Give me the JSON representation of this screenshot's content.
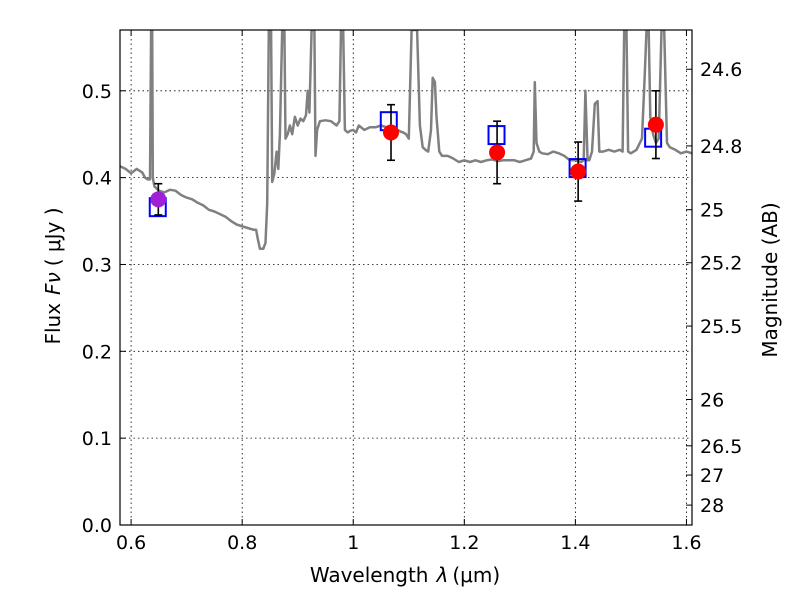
{
  "chart_data": {
    "type": "scatter",
    "xlabel_prefix": "Wavelength",
    "xlabel_symbol": "λ",
    "xlabel_unit": "(μm)",
    "ylabel_prefix": "Flux",
    "ylabel_symbol": "Fν",
    "ylabel_unit": "( μJy )",
    "y2label": "Magnitude (AB)",
    "xlim": [
      0.58,
      1.61
    ],
    "ylim": [
      0.0,
      0.57
    ],
    "grid": true,
    "x_ticks": [
      {
        "v": 0.6,
        "label": "0.6"
      },
      {
        "v": 0.8,
        "label": "0.8"
      },
      {
        "v": 1.0,
        "label": "1"
      },
      {
        "v": 1.2,
        "label": "1.2"
      },
      {
        "v": 1.4,
        "label": "1.4"
      },
      {
        "v": 1.6,
        "label": "1.6"
      }
    ],
    "y_ticks": [
      {
        "v": 0.0,
        "label": "0.0"
      },
      {
        "v": 0.1,
        "label": "0.1"
      },
      {
        "v": 0.2,
        "label": "0.2"
      },
      {
        "v": 0.3,
        "label": "0.3"
      },
      {
        "v": 0.4,
        "label": "0.4"
      },
      {
        "v": 0.5,
        "label": "0.5"
      }
    ],
    "mag_ticks": [
      {
        "mag": 24.6,
        "label": "24.6"
      },
      {
        "mag": 24.8,
        "label": "24.8"
      },
      {
        "mag": 25.0,
        "label": "25"
      },
      {
        "mag": 25.2,
        "label": "25.2"
      },
      {
        "mag": 25.5,
        "label": "25.5"
      },
      {
        "mag": 26.0,
        "label": "26"
      },
      {
        "mag": 26.5,
        "label": "26.5"
      },
      {
        "mag": 27.0,
        "label": "27"
      },
      {
        "mag": 28.0,
        "label": "28"
      }
    ],
    "series": [
      {
        "kind": "model-spectrum",
        "color": "#808080",
        "points": [
          [
            0.58,
            0.413
          ],
          [
            0.59,
            0.41
          ],
          [
            0.6,
            0.405
          ],
          [
            0.61,
            0.41
          ],
          [
            0.62,
            0.406
          ],
          [
            0.625,
            0.4
          ],
          [
            0.63,
            0.398
          ],
          [
            0.634,
            0.398
          ],
          [
            0.636,
            0.57
          ],
          [
            0.638,
            0.57
          ],
          [
            0.639,
            0.4
          ],
          [
            0.642,
            0.39
          ],
          [
            0.65,
            0.385
          ],
          [
            0.66,
            0.383
          ],
          [
            0.67,
            0.386
          ],
          [
            0.68,
            0.385
          ],
          [
            0.69,
            0.38
          ],
          [
            0.7,
            0.377
          ],
          [
            0.71,
            0.375
          ],
          [
            0.72,
            0.371
          ],
          [
            0.73,
            0.368
          ],
          [
            0.74,
            0.363
          ],
          [
            0.75,
            0.361
          ],
          [
            0.76,
            0.358
          ],
          [
            0.77,
            0.355
          ],
          [
            0.78,
            0.35
          ],
          [
            0.79,
            0.346
          ],
          [
            0.8,
            0.344
          ],
          [
            0.81,
            0.342
          ],
          [
            0.82,
            0.34
          ],
          [
            0.825,
            0.34
          ],
          [
            0.828,
            0.33
          ],
          [
            0.832,
            0.318
          ],
          [
            0.838,
            0.318
          ],
          [
            0.842,
            0.325
          ],
          [
            0.845,
            0.37
          ],
          [
            0.848,
            0.57
          ],
          [
            0.852,
            0.57
          ],
          [
            0.854,
            0.395
          ],
          [
            0.858,
            0.405
          ],
          [
            0.862,
            0.43
          ],
          [
            0.865,
            0.41
          ],
          [
            0.868,
            0.45
          ],
          [
            0.872,
            0.57
          ],
          [
            0.876,
            0.57
          ],
          [
            0.878,
            0.445
          ],
          [
            0.882,
            0.45
          ],
          [
            0.886,
            0.46
          ],
          [
            0.89,
            0.45
          ],
          [
            0.895,
            0.47
          ],
          [
            0.9,
            0.46
          ],
          [
            0.905,
            0.468
          ],
          [
            0.91,
            0.465
          ],
          [
            0.915,
            0.472
          ],
          [
            0.918,
            0.5
          ],
          [
            0.921,
            0.475
          ],
          [
            0.925,
            0.57
          ],
          [
            0.93,
            0.57
          ],
          [
            0.932,
            0.425
          ],
          [
            0.935,
            0.455
          ],
          [
            0.94,
            0.465
          ],
          [
            0.95,
            0.466
          ],
          [
            0.96,
            0.465
          ],
          [
            0.97,
            0.46
          ],
          [
            0.975,
            0.465
          ],
          [
            0.978,
            0.57
          ],
          [
            0.982,
            0.57
          ],
          [
            0.985,
            0.455
          ],
          [
            0.99,
            0.452
          ],
          [
            0.995,
            0.454
          ],
          [
            1.0,
            0.455
          ],
          [
            1.005,
            0.452
          ],
          [
            1.01,
            0.46
          ],
          [
            1.02,
            0.455
          ],
          [
            1.03,
            0.458
          ],
          [
            1.04,
            0.458
          ],
          [
            1.05,
            0.46
          ],
          [
            1.06,
            0.458
          ],
          [
            1.07,
            0.455
          ],
          [
            1.08,
            0.455
          ],
          [
            1.085,
            0.453
          ],
          [
            1.09,
            0.452
          ],
          [
            1.095,
            0.45
          ],
          [
            1.1,
            0.445
          ],
          [
            1.105,
            0.57
          ],
          [
            1.115,
            0.57
          ],
          [
            1.12,
            0.46
          ],
          [
            1.125,
            0.435
          ],
          [
            1.13,
            0.432
          ],
          [
            1.135,
            0.43
          ],
          [
            1.14,
            0.455
          ],
          [
            1.143,
            0.515
          ],
          [
            1.147,
            0.51
          ],
          [
            1.15,
            0.47
          ],
          [
            1.155,
            0.43
          ],
          [
            1.16,
            0.425
          ],
          [
            1.17,
            0.425
          ],
          [
            1.18,
            0.422
          ],
          [
            1.19,
            0.418
          ],
          [
            1.2,
            0.42
          ],
          [
            1.21,
            0.418
          ],
          [
            1.22,
            0.42
          ],
          [
            1.23,
            0.418
          ],
          [
            1.24,
            0.42
          ],
          [
            1.25,
            0.421
          ],
          [
            1.26,
            0.419
          ],
          [
            1.27,
            0.42
          ],
          [
            1.28,
            0.42
          ],
          [
            1.29,
            0.42
          ],
          [
            1.3,
            0.418
          ],
          [
            1.31,
            0.42
          ],
          [
            1.32,
            0.422
          ],
          [
            1.325,
            0.43
          ],
          [
            1.327,
            0.51
          ],
          [
            1.33,
            0.44
          ],
          [
            1.335,
            0.43
          ],
          [
            1.34,
            0.428
          ],
          [
            1.35,
            0.427
          ],
          [
            1.36,
            0.43
          ],
          [
            1.37,
            0.428
          ],
          [
            1.38,
            0.425
          ],
          [
            1.39,
            0.42
          ],
          [
            1.4,
            0.42
          ],
          [
            1.41,
            0.418
          ],
          [
            1.415,
            0.42
          ],
          [
            1.418,
            0.5
          ],
          [
            1.422,
            0.42
          ],
          [
            1.425,
            0.42
          ],
          [
            1.43,
            0.43
          ],
          [
            1.435,
            0.485
          ],
          [
            1.44,
            0.488
          ],
          [
            1.443,
            0.43
          ],
          [
            1.45,
            0.43
          ],
          [
            1.46,
            0.432
          ],
          [
            1.47,
            0.43
          ],
          [
            1.48,
            0.432
          ],
          [
            1.485,
            0.43
          ],
          [
            1.488,
            0.57
          ],
          [
            1.492,
            0.57
          ],
          [
            1.495,
            0.43
          ],
          [
            1.5,
            0.428
          ],
          [
            1.505,
            0.43
          ],
          [
            1.51,
            0.432
          ],
          [
            1.52,
            0.445
          ],
          [
            1.525,
            0.52
          ],
          [
            1.528,
            0.57
          ],
          [
            1.532,
            0.57
          ],
          [
            1.535,
            0.47
          ],
          [
            1.54,
            0.45
          ],
          [
            1.545,
            0.44
          ],
          [
            1.55,
            0.445
          ],
          [
            1.555,
            0.57
          ],
          [
            1.56,
            0.57
          ],
          [
            1.565,
            0.44
          ],
          [
            1.57,
            0.435
          ],
          [
            1.58,
            0.432
          ],
          [
            1.59,
            0.428
          ],
          [
            1.6,
            0.43
          ],
          [
            1.61,
            0.428
          ]
        ]
      },
      {
        "kind": "model-bandpass-flux",
        "marker": "open-square",
        "color": "#0000ff",
        "points": [
          [
            0.648,
            0.366
          ],
          [
            1.064,
            0.465
          ],
          [
            1.258,
            0.449
          ],
          [
            1.404,
            0.411
          ],
          [
            1.54,
            0.446
          ]
        ]
      },
      {
        "kind": "observed-flux",
        "marker": "filled-circle",
        "colors": [
          "#a020d8",
          "#ff0000",
          "#ff0000",
          "#ff0000",
          "#ff0000"
        ],
        "points": [
          [
            0.649,
            0.375
          ],
          [
            1.068,
            0.452
          ],
          [
            1.259,
            0.429
          ],
          [
            1.405,
            0.407
          ],
          [
            1.545,
            0.461
          ]
        ],
        "yerr": [
          0.018,
          0.032,
          0.036,
          0.034,
          0.039
        ]
      }
    ]
  }
}
